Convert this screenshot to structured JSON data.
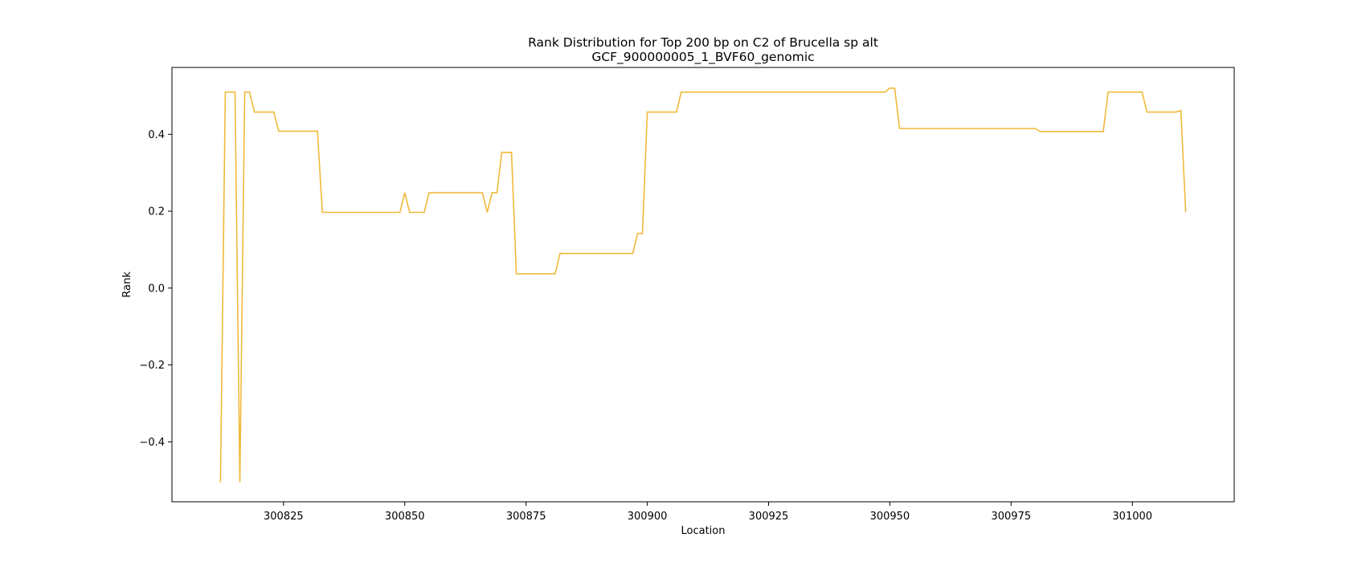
{
  "chart_data": {
    "type": "line",
    "title_line1": "Rank Distribution for Top 200 bp on C2 of Brucella sp alt",
    "title_line2": "GCF_900000005_1_BVF60_genomic",
    "xlabel": "Location",
    "ylabel": "Rank",
    "xlim": [
      300802,
      301021
    ],
    "ylim": [
      -0.556,
      0.574
    ],
    "xticks": [
      300825,
      300850,
      300875,
      300900,
      300925,
      300950,
      300975,
      301000
    ],
    "yticks": [
      -0.4,
      -0.2,
      0.0,
      0.2,
      0.4
    ],
    "ytick_labels": [
      "−0.4",
      "−0.2",
      "0.0",
      "0.2",
      "0.4"
    ],
    "grid": false,
    "line_color": "#f0b93a",
    "series": [
      {
        "x": [
          300812,
          300813,
          300815,
          300816,
          300817,
          300818,
          300819,
          300823,
          300824,
          300832,
          300833,
          300849,
          300850,
          300851,
          300854,
          300855,
          300866,
          300867,
          300868,
          300869,
          300870,
          300872,
          300873,
          300881,
          300882,
          300897,
          300898,
          300899,
          300900,
          300906,
          300907,
          300949,
          300950,
          300951,
          300952,
          300980,
          300981,
          300994,
          300995,
          301002,
          301003,
          301009,
          301010,
          301011
        ],
        "y": [
          -0.505,
          0.51,
          0.51,
          -0.505,
          0.51,
          0.51,
          0.458,
          0.458,
          0.408,
          0.408,
          0.197,
          0.197,
          0.248,
          0.197,
          0.197,
          0.248,
          0.248,
          0.197,
          0.248,
          0.248,
          0.353,
          0.353,
          0.037,
          0.037,
          0.09,
          0.09,
          0.142,
          0.142,
          0.458,
          0.458,
          0.51,
          0.51,
          0.52,
          0.52,
          0.415,
          0.415,
          0.407,
          0.407,
          0.51,
          0.51,
          0.458,
          0.458,
          0.462,
          0.197
        ]
      }
    ]
  }
}
